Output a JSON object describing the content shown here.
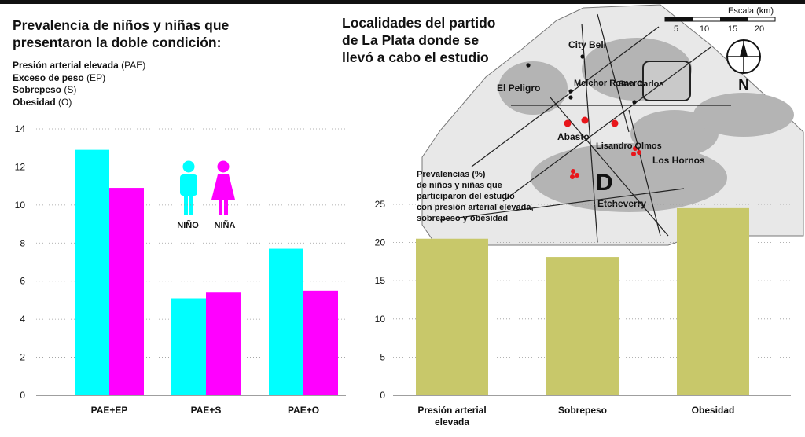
{
  "left_title": [
    "Prevalencia de niños y niñas que",
    "presentaron la doble condición:"
  ],
  "legend": [
    {
      "term": "Presión arterial elevada",
      "abbr": "(PAE)"
    },
    {
      "term": "Exceso de peso",
      "abbr": "(EP)"
    },
    {
      "term": "Sobrepeso",
      "abbr": "(S)"
    },
    {
      "term": "Obesidad",
      "abbr": "(O)"
    }
  ],
  "gender_labels": {
    "boy": "NIÑO",
    "girl": "NIÑA"
  },
  "right_title": [
    "Localidades del partido",
    "de La Plata donde se",
    "llevó a cabo el estudio"
  ],
  "map": {
    "scale_label": "Escala (km)",
    "scale_ticks": [
      "5",
      "10",
      "15",
      "20"
    ],
    "north": "N",
    "big_letter": "D",
    "localities": [
      "City Bell",
      "San Carlos",
      "Melchor Romero",
      "El Peligro",
      "Abasto",
      "Lisandro Olmos",
      "Los Hornos",
      "Etcheverry"
    ]
  },
  "right_caption": [
    "Prevalencias (%)",
    "de niños y niñas que",
    "participaron del estudio",
    "con presión arterial elevada,",
    "sobrepeso y obesidad"
  ],
  "colors": {
    "boy": "#00ffff",
    "girl": "#ff00ff",
    "right_bar": "#c8c86a",
    "grid": "#999999",
    "map_fill": "#b4b4b4",
    "map_dot": "#e8161b"
  },
  "chart_data": [
    {
      "type": "bar",
      "categories": [
        "PAE+EP",
        "PAE+S",
        "PAE+O"
      ],
      "series": [
        {
          "name": "NIÑO",
          "values": [
            12.9,
            5.1,
            7.7
          ]
        },
        {
          "name": "NIÑA",
          "values": [
            10.9,
            5.4,
            5.5
          ]
        }
      ],
      "yticks": [
        "0",
        "2",
        "4",
        "6",
        "8",
        "10",
        "12",
        "14"
      ],
      "ylim": [
        0,
        14
      ],
      "grid": true
    },
    {
      "type": "bar",
      "categories": [
        "Presión arterial elevada",
        "Sobrepeso",
        "Obesidad"
      ],
      "values": [
        20.5,
        18.1,
        24.5
      ],
      "yticks": [
        "0",
        "5",
        "10",
        "15",
        "20",
        "25"
      ],
      "ylim": [
        0,
        25
      ],
      "grid": true
    }
  ]
}
